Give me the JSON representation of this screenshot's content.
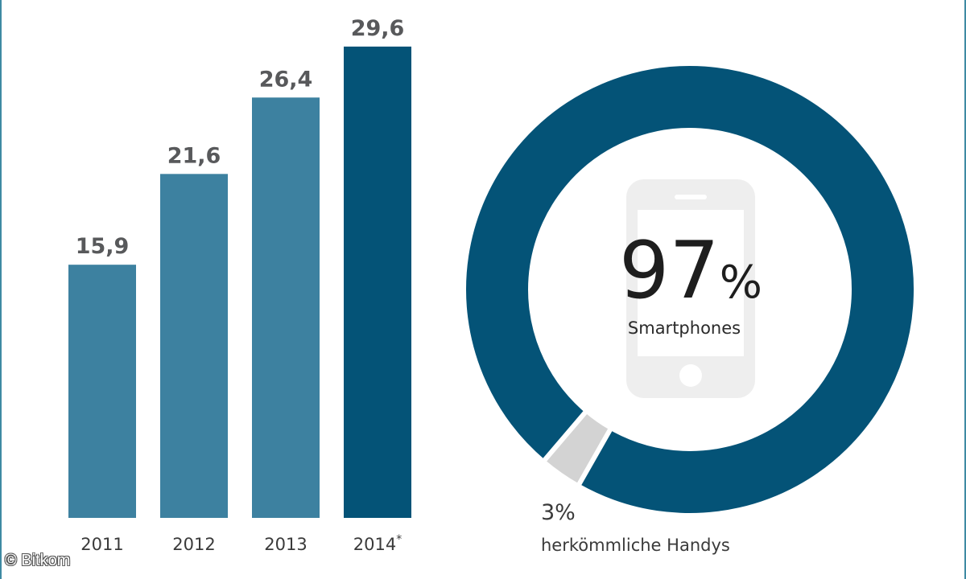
{
  "colors": {
    "bar_light": "#3d81a0",
    "bar_dark": "#045377",
    "donut_main": "#045377",
    "donut_minor": "#d3d3d3",
    "phone": "#eeeeee",
    "frame": "#3f8aa3"
  },
  "chart_data": [
    {
      "type": "bar",
      "categories": [
        "2011",
        "2012",
        "2013",
        "2014*"
      ],
      "values": [
        15.9,
        21.6,
        26.4,
        29.6
      ],
      "value_labels": [
        "15,9",
        "21,6",
        "26,4",
        "29,6"
      ],
      "highlight_index": 3,
      "ylim": [
        0,
        32
      ]
    },
    {
      "type": "pie",
      "variant": "donut",
      "slices": [
        {
          "name": "Smartphones",
          "value": 97,
          "color": "#045377"
        },
        {
          "name": "herkömmliche Handys",
          "value": 3,
          "color": "#d3d3d3"
        }
      ]
    }
  ],
  "donut": {
    "center_value": "97",
    "center_sign": "%",
    "center_label": "Smartphones",
    "center_icon": "smartphone-icon",
    "minor_value": "3%",
    "minor_label": "herkömmliche Handys"
  },
  "copyright": "© Bitkom"
}
